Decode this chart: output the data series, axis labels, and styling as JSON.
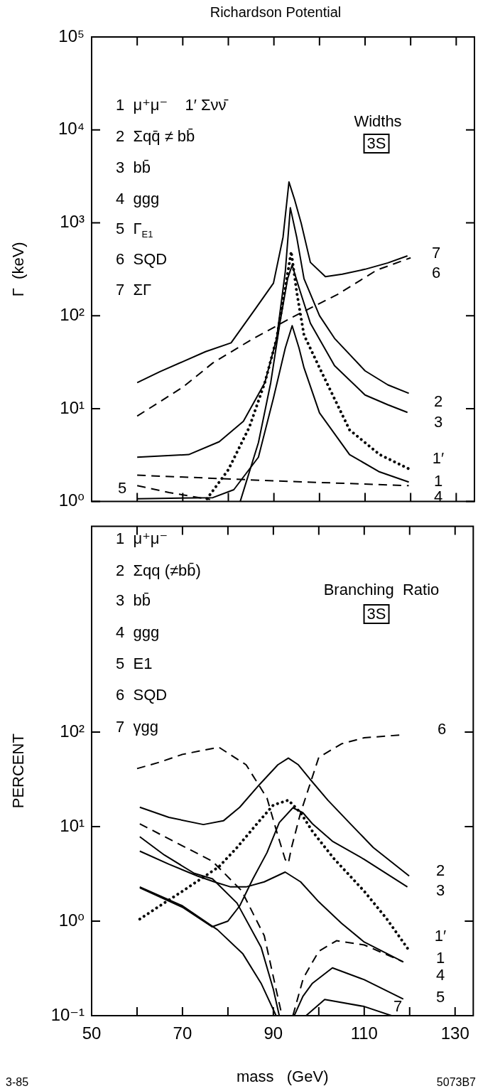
{
  "chart_data": [
    {
      "type": "line",
      "title": "Richardson Potential",
      "ylabel": "Γ  (keV)",
      "log": true,
      "marker": "none",
      "tick_labels": "y",
      "xlim": [
        50,
        134
      ],
      "xticks": [
        50,
        {
          "value": 60,
          "label": null
        },
        70,
        {
          "value": 80,
          "label": null
        },
        90,
        {
          "value": 100,
          "label": null
        },
        110,
        {
          "value": 120,
          "label": null
        },
        130
      ],
      "ylim": [
        1,
        100000
      ],
      "yticks": [
        {
          "value": 1,
          "label": "10⁰"
        },
        {
          "value": 10,
          "label": "10¹"
        },
        {
          "value": 100,
          "label": "10²"
        },
        {
          "value": 1000,
          "label": "10³"
        },
        {
          "value": 10000,
          "label": "10⁴"
        },
        {
          "value": 100000,
          "label": "10⁵"
        }
      ],
      "series": [
        {
          "color": "#000000",
          "line_style": "solid",
          "x": [
            60,
            65,
            70,
            75,
            80.6,
            86,
            89.9,
            92,
            93.3,
            94.5,
            96,
            98,
            101.3,
            105,
            110,
            115,
            119.3
          ],
          "values": [
            19,
            25,
            32,
            41,
            51,
            120,
            224,
            700,
            2750,
            1800,
            980,
            375,
            263,
            280,
            316,
            370,
            440
          ]
        },
        {
          "color": "#000000",
          "line_style": "dashed",
          "x": [
            60,
            70,
            76.6,
            85,
            94,
            104,
            112.6,
            120
          ],
          "values": [
            8.3,
            17,
            31,
            55,
            96,
            170,
            310,
            420
          ]
        },
        {
          "color": "#000000",
          "line_style": "solid",
          "x": [
            60,
            71.3,
            78,
            83.3,
            88,
            90.6,
            92.5,
            93.6,
            95,
            96.6,
            100,
            103.3,
            110,
            115,
            119.6
          ],
          "values": [
            3,
            3.2,
            4.4,
            7.3,
            19,
            57,
            300,
            1450,
            700,
            250,
            100,
            57,
            25.5,
            18,
            14.6
          ]
        },
        {
          "color": "#000000",
          "line_style": "solid",
          "x": [
            82.6,
            86.6,
            89.3,
            91.3,
            93,
            94,
            95.5,
            98,
            103.3,
            110,
            115,
            119.3
          ],
          "values": [
            1,
            4.3,
            19,
            83,
            250,
            350,
            200,
            83,
            29,
            14,
            11,
            9.1
          ]
        },
        {
          "color": "#000000",
          "line_style": "dotted",
          "x": [
            75.3,
            80,
            84.6,
            88,
            90.6,
            92.5,
            93.8,
            95,
            96.6,
            100,
            106.6,
            113.2,
            119.6
          ],
          "values": [
            1.07,
            2.2,
            6.3,
            19,
            57,
            200,
            490,
            180,
            62,
            27.5,
            5.9,
            3.2,
            2.25
          ]
        },
        {
          "color": "#000000",
          "line_style": "solid",
          "x": [
            60,
            76.6,
            81.2,
            86.6,
            89.9,
            92.5,
            94,
            95.5,
            96.6,
            100,
            106.6,
            113,
            119.6
          ],
          "values": [
            1.07,
            1.1,
            1.34,
            3,
            13,
            45,
            78,
            45,
            27.5,
            9,
            3.2,
            2.1,
            1.62
          ]
        },
        {
          "color": "#000000",
          "line_style": "dashed",
          "x": [
            60,
            90,
            119.6
          ],
          "values": [
            1.92,
            1.67,
            1.48
          ]
        },
        {
          "color": "#000000",
          "line_style": "dashed",
          "x": [
            60,
            67,
            76
          ],
          "values": [
            1.48,
            1.25,
            1.05
          ]
        }
      ],
      "annotations": [
        "1  μ⁺μ⁻    1′ Σνν̄",
        "2  Σqq̄ ≠ bb̄",
        "3  bb̄",
        "4  ggg",
        "5  Γ$_{E1}$",
        "6  SQD",
        "7  ΣΓ",
        "Widths",
        "3S",
        "7",
        "6",
        "2",
        "3",
        "1′",
        "1",
        "4",
        "5"
      ]
    },
    {
      "type": "line",
      "xlabel": "mass   (GeV)",
      "ylabel": "PERCENT",
      "log": true,
      "marker": "none",
      "xlim": [
        50,
        134
      ],
      "xticks": [
        50,
        {
          "value": 60,
          "label": null
        },
        70,
        {
          "value": 80,
          "label": null
        },
        90,
        {
          "value": 100,
          "label": null
        },
        110,
        {
          "value": 120,
          "label": null
        },
        130
      ],
      "ylim": [
        0.1,
        15000
      ],
      "yticks": [
        {
          "value": 0.1,
          "label": "10⁻¹"
        },
        {
          "value": 1,
          "label": "10⁰"
        },
        {
          "value": 10,
          "label": "10¹"
        },
        {
          "value": 100,
          "label": "10²"
        }
      ],
      "series": [
        {
          "color": "#000000",
          "line_style": "dashed",
          "x": [
            60,
            65,
            70,
            78,
            84,
            88.6,
            91,
            92.6,
            93.3,
            94,
            96,
            100,
            105,
            110,
            118
          ],
          "values": [
            41,
            48,
            58,
            69,
            45,
            20,
            8,
            4.5,
            4.1,
            6,
            14,
            54,
            75,
            87,
            93
          ]
        },
        {
          "color": "#000000",
          "line_style": "solid",
          "x": [
            60.6,
            67,
            74.6,
            79,
            82.6,
            87,
            91,
            93.3,
            95.5,
            98,
            102,
            106.7,
            112,
            119.9
          ],
          "values": [
            16,
            12.5,
            10.5,
            11.5,
            16,
            28,
            45,
            53,
            45,
            32,
            19,
            11,
            6,
            3
          ]
        },
        {
          "color": "#000000",
          "line_style": "solid",
          "x": [
            60.6,
            70,
            76.5,
            80,
            82.6,
            85.5,
            88.6,
            91.3,
            94.3,
            96.5,
            98.6,
            103,
            110,
            119.5
          ],
          "values": [
            2.25,
            1.4,
            0.87,
            1,
            1.45,
            2.8,
            5.3,
            11,
            15.8,
            14,
            10.7,
            7,
            4.5,
            2.3
          ]
        },
        {
          "color": "#000000",
          "line_style": "solid",
          "x": [
            60.6,
            67,
            73.3,
            77,
            80.6,
            84,
            88,
            92.6,
            96,
            100,
            105,
            110,
            118.6
          ],
          "values": [
            5.5,
            4,
            3,
            2.6,
            2.3,
            2.3,
            2.6,
            3.3,
            2.6,
            1.6,
            0.95,
            0.6,
            0.37
          ]
        },
        {
          "color": "#000000",
          "line_style": "solid",
          "x": [
            60.6,
            66,
            72.6,
            76.6,
            82,
            87.3,
            90,
            91.3,
            93,
            94.6,
            96.5,
            98.6,
            103,
            110,
            118.6
          ],
          "values": [
            7.8,
            5,
            3.2,
            2.8,
            1.55,
            0.53,
            0.19,
            0.1,
            null,
            0.1,
            0.16,
            0.22,
            0.32,
            0.24,
            0.15
          ]
        },
        {
          "color": "#000000",
          "line_style": "dashed",
          "x": [
            60.6,
            68,
            76.6,
            83,
            88,
            90.6,
            91.9,
            93,
            94.3,
            96.6,
            100,
            103.9,
            110,
            118.6
          ],
          "values": [
            10.7,
            7,
            4.3,
            2.1,
            0.7,
            0.19,
            0.1,
            null,
            0.1,
            0.25,
            0.48,
            0.62,
            0.56,
            0.37
          ]
        },
        {
          "color": "#000000",
          "line_style": "solid",
          "x": [
            60.6,
            70,
            77.7,
            83.3,
            87.3,
            90.6,
            93,
            97.2,
            101.3,
            110,
            116
          ],
          "values": [
            2.3,
            1.45,
            0.81,
            0.45,
            0.22,
            0.1,
            null,
            0.1,
            0.148,
            0.125,
            0.1
          ]
        },
        {
          "color": "#000000",
          "line_style": "dotted",
          "x": [
            60.6,
            65,
            70,
            78,
            82,
            86.6,
            90,
            93.3,
            96,
            98.6,
            103.3,
            110,
            115,
            119.6
          ],
          "values": [
            1.05,
            1.45,
            2.07,
            3.75,
            6,
            11,
            16.9,
            19,
            14,
            8.9,
            4.6,
            2.07,
            1.05,
            0.51
          ]
        }
      ],
      "annotations": [
        "1  μ⁺μ⁻",
        "2  Σqq (≠bb̄)",
        "3  bb̄",
        "4  ggg",
        "5  E1",
        "6  SQD",
        "7  γgg",
        "Branching  Ratio",
        "3S",
        "3-85",
        "5073B7",
        "6",
        "2",
        "3",
        "1′",
        "1",
        "4",
        "5",
        "7"
      ]
    }
  ]
}
